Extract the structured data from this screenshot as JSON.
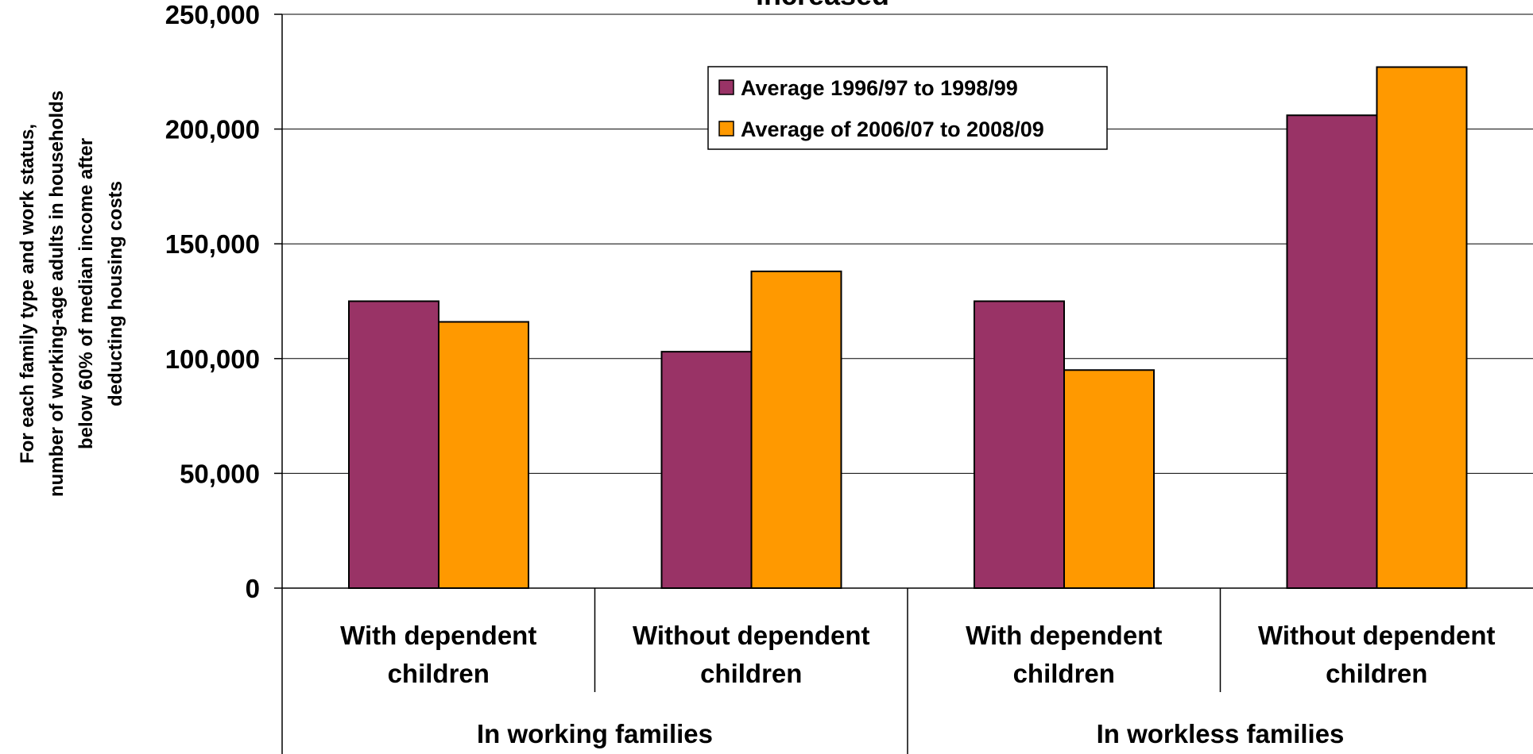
{
  "chart_data": {
    "type": "bar",
    "title": "increased",
    "ylabel_lines": [
      "For each family type and work status,",
      "number of working-age adults in households",
      "below 60% of median income after",
      "deducting housing costs"
    ],
    "xlabel": "",
    "ylim": [
      0,
      250000
    ],
    "y_ticks": [
      0,
      50000,
      100000,
      150000,
      200000,
      250000
    ],
    "y_tick_labels": [
      "0",
      "50,000",
      "100,000",
      "150,000",
      "200,000",
      "250,000"
    ],
    "categories": [
      {
        "line1": "With dependent",
        "line2": "children"
      },
      {
        "line1": "Without dependent",
        "line2": "children"
      },
      {
        "line1": "With dependent",
        "line2": "children"
      },
      {
        "line1": "Without dependent",
        "line2": "children"
      }
    ],
    "groups": [
      {
        "label": "In working families",
        "span": [
          0,
          1
        ]
      },
      {
        "label": "In workless families",
        "span": [
          2,
          3
        ]
      }
    ],
    "series": [
      {
        "name": "Average 1996/97 to 1998/99",
        "color": "#993366",
        "values": [
          125000,
          103000,
          125000,
          206000
        ]
      },
      {
        "name": "Average of 2006/07 to 2008/09",
        "color": "#FF9900",
        "values": [
          116000,
          138000,
          95000,
          227000
        ]
      }
    ],
    "grid": true,
    "legend_position": "top-center"
  }
}
